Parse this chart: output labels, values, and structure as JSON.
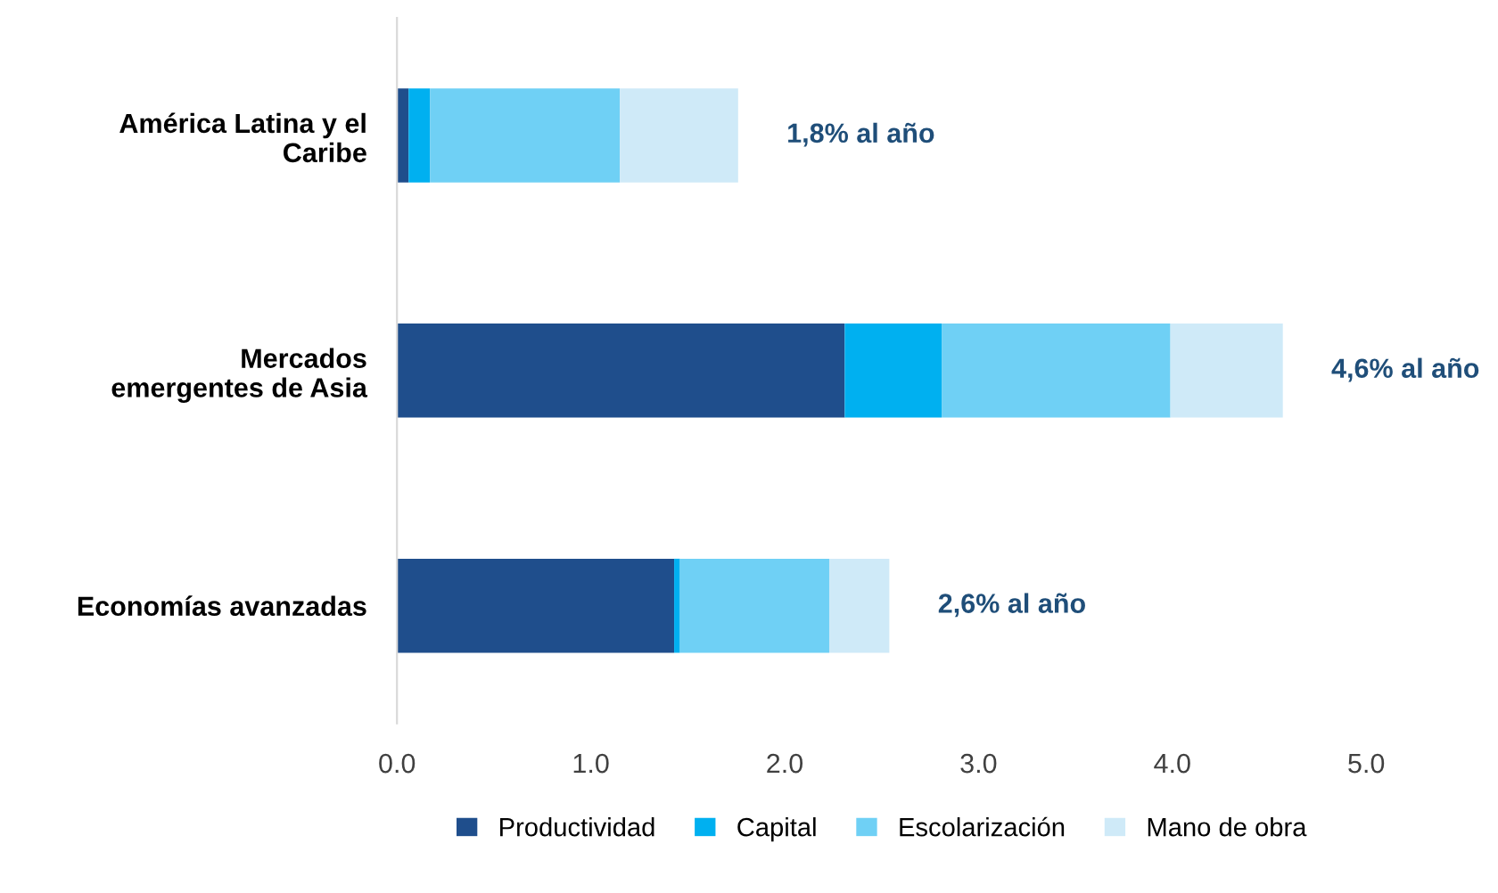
{
  "chart_data": {
    "type": "bar",
    "orientation": "horizontal",
    "stacked": true,
    "categories": [
      "América Latina y el\nCaribe",
      "Mercados\nemergentes de Asia",
      "Economías avanzadas"
    ],
    "series": [
      {
        "name": "Productividad",
        "color": "#1f4e8c",
        "values": [
          0.06,
          2.31,
          1.43
        ]
      },
      {
        "name": "Capital",
        "color": "#00b0f0",
        "values": [
          0.11,
          0.5,
          0.03
        ]
      },
      {
        "name": "Escolarización",
        "color": "#6fd0f5",
        "values": [
          0.98,
          1.18,
          0.77
        ]
      },
      {
        "name": "Mano de obra",
        "color": "#cfeaf8",
        "values": [
          0.61,
          0.58,
          0.31
        ]
      }
    ],
    "totals": [
      "1,8% al año",
      "4,6% al año",
      "2,6% al año"
    ],
    "xlim": [
      0,
      5
    ],
    "xticks": [
      {
        "value": 0,
        "label": "0.0"
      },
      {
        "value": 1,
        "label": "1.0"
      },
      {
        "value": 2,
        "label": "2.0"
      },
      {
        "value": 3,
        "label": "3.0"
      },
      {
        "value": 4,
        "label": "4.0"
      },
      {
        "value": 5,
        "label": "5.0"
      }
    ],
    "grid": false,
    "legend": "bottom"
  }
}
